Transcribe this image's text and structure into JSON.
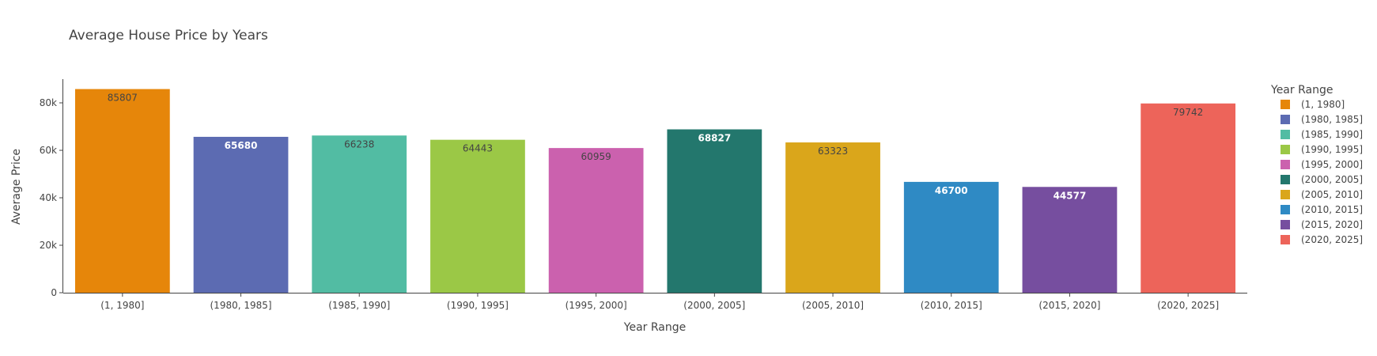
{
  "chart_data": {
    "type": "bar",
    "title": "Average House Price by Years",
    "xlabel": "Year Range",
    "ylabel": "Average Price",
    "ylim": [
      0,
      90000
    ],
    "yticks": [
      {
        "value": 0,
        "label": "0"
      },
      {
        "value": 20000,
        "label": "20k"
      },
      {
        "value": 40000,
        "label": "40k"
      },
      {
        "value": 60000,
        "label": "60k"
      },
      {
        "value": 80000,
        "label": "80k"
      }
    ],
    "grid": false,
    "legend": {
      "title": "Year Range",
      "position": "right"
    },
    "categories": [
      "(1, 1980]",
      "(1980, 1985]",
      "(1985, 1990]",
      "(1990, 1995]",
      "(1995, 2000]",
      "(2000, 2005]",
      "(2005, 2010]",
      "(2010, 2015]",
      "(2015, 2020]",
      "(2020, 2025]"
    ],
    "values": [
      85807,
      65680,
      66238,
      64443,
      60959,
      68827,
      63323,
      46700,
      44577,
      79742
    ],
    "colors": [
      "#E6860A",
      "#5C6BB2",
      "#52BCA3",
      "#9BC846",
      "#CB61AE",
      "#23776D",
      "#DAA61B",
      "#2F8AC4",
      "#764E9F",
      "#ED645A"
    ],
    "label_colors": [
      "#444444",
      "#ffffff",
      "#444444",
      "#444444",
      "#444444",
      "#ffffff",
      "#444444",
      "#ffffff",
      "#ffffff",
      "#444444"
    ]
  }
}
